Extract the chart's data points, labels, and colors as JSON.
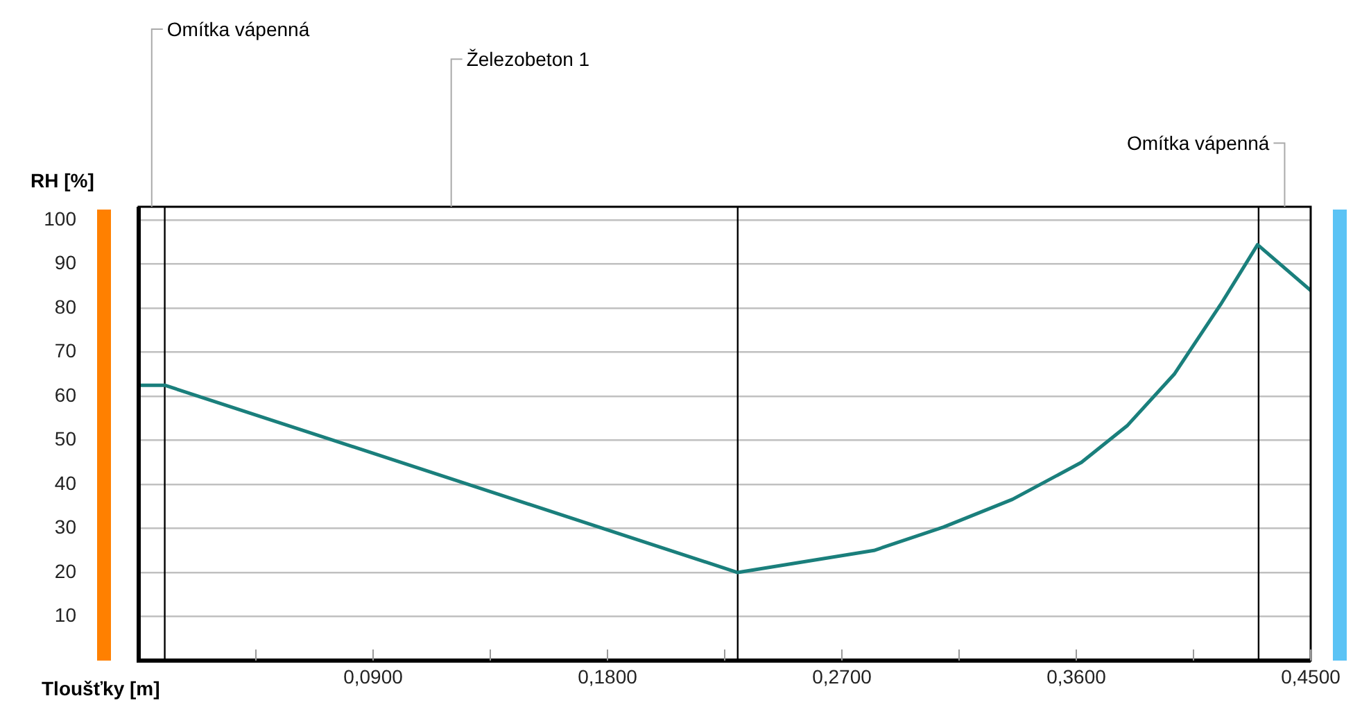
{
  "chart_data": {
    "type": "line",
    "ylabel": "RH [%]",
    "xlabel": "Tloušťky [m]",
    "x": [
      0,
      0.01,
      0.23,
      0.2823,
      0.309,
      0.3355,
      0.362,
      0.3797,
      0.3976,
      0.4154,
      0.4296,
      0.45
    ],
    "series": [
      {
        "color": "#1a7f7c",
        "values": [
          62.5,
          62.5,
          20,
          25,
          30.3,
          36.6,
          45,
          53.4,
          65,
          80.8,
          94.4,
          84
        ]
      }
    ],
    "xlim": [
      0,
      0.45
    ],
    "xticks": [
      {
        "value": 0.045,
        "label": null
      },
      {
        "value": 0.09,
        "label": "0,0900"
      },
      {
        "value": 0.135,
        "label": null
      },
      {
        "value": 0.18,
        "label": "0,1800"
      },
      {
        "value": 0.225,
        "label": null
      },
      {
        "value": 0.27,
        "label": "0,2700"
      },
      {
        "value": 0.315,
        "label": null
      },
      {
        "value": 0.36,
        "label": "0,3600"
      },
      {
        "value": 0.405,
        "label": null
      },
      {
        "value": 0.45,
        "label": "0,4500"
      }
    ],
    "ylim": [
      0,
      103
    ],
    "yticks": [
      10,
      20,
      30,
      40,
      50,
      60,
      70,
      80,
      90,
      100
    ],
    "grid": "y",
    "marker": "none",
    "line_style": "solid",
    "ref_lines": [
      {
        "axis": "x",
        "value": 0.01,
        "color": "#000000"
      },
      {
        "axis": "x",
        "value": 0.23,
        "color": "#000000"
      },
      {
        "axis": "x",
        "value": 0.43,
        "color": "#000000"
      }
    ],
    "annotations": [
      "Omítka vápenná",
      "Železobeton 1",
      "Omítka vápenná"
    ]
  }
}
